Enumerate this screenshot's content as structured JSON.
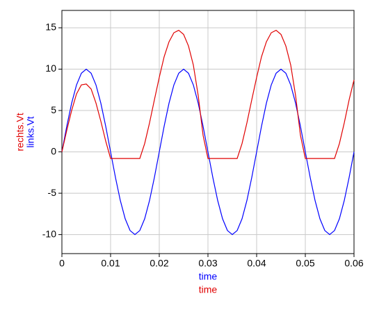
{
  "chart_data": {
    "type": "line",
    "x": [
      0,
      0.001,
      0.002,
      0.003,
      0.004,
      0.005,
      0.006,
      0.007,
      0.008,
      0.009,
      0.01,
      0.011,
      0.012,
      0.013,
      0.014,
      0.015,
      0.016,
      0.017,
      0.018,
      0.019,
      0.02,
      0.021,
      0.022,
      0.023,
      0.024,
      0.025,
      0.026,
      0.027,
      0.028,
      0.029,
      0.03,
      0.031,
      0.032,
      0.033,
      0.034,
      0.035,
      0.036,
      0.037,
      0.038,
      0.039,
      0.04,
      0.041,
      0.042,
      0.043,
      0.044,
      0.045,
      0.046,
      0.047,
      0.048,
      0.049,
      0.05,
      0.051,
      0.052,
      0.053,
      0.054,
      0.055,
      0.056,
      0.057,
      0.058,
      0.059,
      0.06
    ],
    "series": [
      {
        "name": "links.Vt",
        "color": "#0000ff",
        "values": [
          0,
          3.09,
          5.88,
          8.09,
          9.51,
          10,
          9.51,
          8.09,
          5.88,
          3.09,
          0,
          -3.09,
          -5.88,
          -8.09,
          -9.51,
          -10,
          -9.51,
          -8.09,
          -5.88,
          -3.09,
          0,
          3.09,
          5.88,
          8.09,
          9.51,
          10,
          9.51,
          8.09,
          5.88,
          3.09,
          0,
          -3.09,
          -5.88,
          -8.09,
          -9.51,
          -10,
          -9.51,
          -8.09,
          -5.88,
          -3.09,
          0,
          3.09,
          5.88,
          8.09,
          9.51,
          10,
          9.51,
          8.09,
          5.88,
          3.09,
          0,
          -3.09,
          -5.88,
          -8.09,
          -9.51,
          -10,
          -9.51,
          -8.09,
          -5.88,
          -3.09,
          0
        ]
      },
      {
        "name": "rechts.Vt",
        "color": "#e00000",
        "values": [
          0,
          2.6,
          5,
          7,
          8.1,
          8.2,
          7.6,
          5.9,
          3.7,
          1.3,
          -0.8,
          -0.8,
          -0.8,
          -0.8,
          -0.8,
          -0.8,
          -0.8,
          1,
          3.5,
          6.3,
          9,
          11.5,
          13.3,
          14.4,
          14.7,
          14.2,
          12.8,
          10.5,
          6.8,
          2,
          -0.8,
          -0.8,
          -0.8,
          -0.8,
          -0.8,
          -0.8,
          -0.8,
          1,
          3.5,
          6.3,
          9,
          11.5,
          13.3,
          14.4,
          14.7,
          14.2,
          12.8,
          10.5,
          6.8,
          2,
          -0.8,
          -0.8,
          -0.8,
          -0.8,
          -0.8,
          -0.8,
          -0.8,
          1,
          3.5,
          6.3,
          8.7
        ]
      }
    ],
    "x_labels": [
      "time",
      "time"
    ],
    "xlim": [
      0,
      0.06
    ],
    "xticks": [
      0,
      0.01,
      0.02,
      0.03,
      0.04,
      0.05,
      0.06
    ],
    "ylim": [
      -12.3,
      17.1
    ],
    "yticks": [
      -10,
      -5,
      0,
      5,
      10,
      15
    ],
    "grid": true
  }
}
